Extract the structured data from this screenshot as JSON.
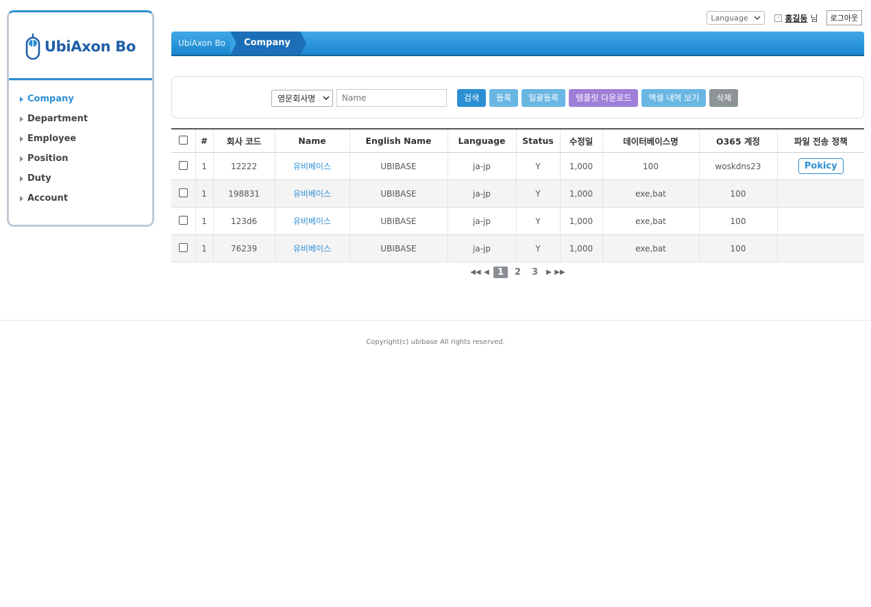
{
  "sidebar": {
    "logo_text": "UbiAxon Bo",
    "items": [
      {
        "label": "Company",
        "active": true
      },
      {
        "label": "Department"
      },
      {
        "label": "Employee"
      },
      {
        "label": "Position"
      },
      {
        "label": "Duty"
      },
      {
        "label": "Account"
      }
    ]
  },
  "topbar": {
    "language_label": "Language",
    "user_name": "홍길동",
    "user_suffix": "님",
    "logout_label": "로그아웃"
  },
  "breadcrumb": {
    "root": "UbiAxon Bo",
    "current": "Company"
  },
  "search": {
    "select_value": "영문회사명",
    "input_placeholder": "Name",
    "buttons": {
      "search": "검색",
      "register": "등록",
      "bulk_register": "일괄등록",
      "template_download": "템플릿 다운로드",
      "excel_view": "엑셀 내역 보기",
      "delete": "삭제"
    }
  },
  "table": {
    "headers": [
      "#",
      "회사 코드",
      "Name",
      "English Name",
      "Language",
      "Status",
      "수정일",
      "데이터베이스명",
      "O365 계정",
      "파일 전송 정책"
    ],
    "rows": [
      {
        "num": "1",
        "code": "12222",
        "name": "유비베이스",
        "english_name": "UBIBASE",
        "language": "ja-jp",
        "status": "Y",
        "modified": "1,000",
        "db": "100",
        "o365": "woskdns23",
        "policy": "Pokicy"
      },
      {
        "num": "1",
        "code": "198831",
        "name": "유비베이스",
        "english_name": "UBIBASE",
        "language": "ja-jp",
        "status": "Y",
        "modified": "1,000",
        "db": "exe,bat",
        "o365": "100",
        "policy": ""
      },
      {
        "num": "1",
        "code": "123d6",
        "name": "유비베이스",
        "english_name": "UBIBASE",
        "language": "ja-jp",
        "status": "Y",
        "modified": "1,000",
        "db": "exe,bat",
        "o365": "100",
        "policy": ""
      },
      {
        "num": "1",
        "code": "76239",
        "name": "유비베이스",
        "english_name": "UBIBASE",
        "language": "ja-jp",
        "status": "Y",
        "modified": "1,000",
        "db": "exe,bat",
        "o365": "100",
        "policy": ""
      }
    ]
  },
  "pagination": {
    "pages": [
      "1",
      "2",
      "3"
    ],
    "current": "1"
  },
  "footer": {
    "copyright": "Copyright(c) ubibase All rights reserved."
  },
  "colors": {
    "accent": "#2d8fd3",
    "breadcrumb_dark": "#1b6eb8",
    "purple_button": "#a07fd8",
    "gray_button": "#8c9498"
  }
}
